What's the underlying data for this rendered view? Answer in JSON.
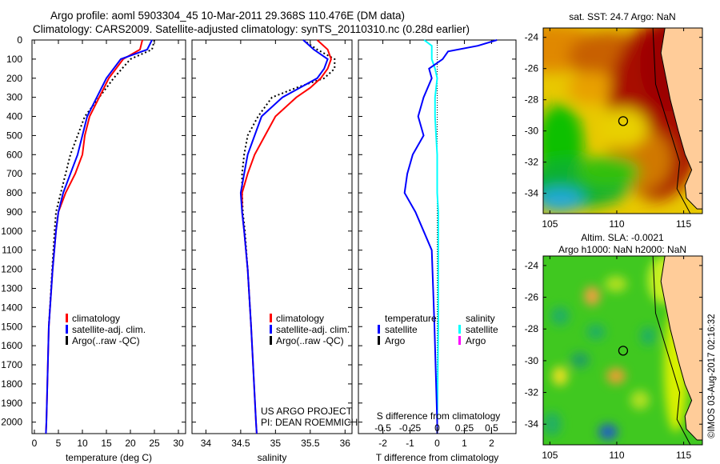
{
  "title": {
    "line1": "Argo profile: aoml 5903304_45 10-Mar-2011 29.368S 110.476E (DM data)",
    "line2": "Climatology: CARS2009. Satellite-adjusted climatology: synTS_20110310.nc (0.28d earlier)"
  },
  "colors": {
    "climatology": "#ff0000",
    "satellite": "#0000ff",
    "argo": "#000000",
    "salinity_satellite": "#00ffff",
    "salinity_argo": "#ff00ff",
    "land": "#ffcc99"
  },
  "credit": "©IMOS 03-Aug-2017 02:16:32",
  "project": {
    "line1": "US ARGO PROJECT",
    "line2": "PI: DEAN ROEMMICH"
  },
  "chart_data": [
    {
      "type": "line",
      "name": "temperature-profile",
      "xlabel": "temperature (deg C)",
      "ylabel": "depth",
      "xlim": [
        -0.5,
        31.5
      ],
      "ylim": [
        2060,
        0
      ],
      "xticks": [
        0,
        5,
        10,
        15,
        20,
        25,
        30
      ],
      "yticks": [
        0,
        100,
        200,
        300,
        400,
        500,
        600,
        700,
        800,
        900,
        1000,
        1100,
        1200,
        1300,
        1400,
        1500,
        1600,
        1700,
        1800,
        1900,
        2000
      ],
      "legend": [
        "climatology",
        "satellite-adj. clim.",
        "Argo(..raw -QC)"
      ],
      "legend_placement": "lower-right",
      "depth": [
        0,
        50,
        100,
        200,
        300,
        400,
        500,
        600,
        700,
        800,
        900,
        1000,
        1200,
        1500,
        2000,
        2060
      ],
      "series": [
        {
          "name": "climatology",
          "values": [
            22.5,
            22,
            18.5,
            15.5,
            13.5,
            11.5,
            10.5,
            10,
            8.5,
            6.5,
            5,
            4.5,
            3.8,
            3,
            2.5,
            2.4
          ]
        },
        {
          "name": "satellite-adj. clim.",
          "values": [
            24.5,
            23.5,
            18,
            15,
            13,
            11,
            10,
            9,
            7.5,
            6,
            5,
            4.5,
            3.8,
            3,
            2.5,
            2.4
          ]
        },
        {
          "name": "Argo(..raw -QC)",
          "values": [
            25,
            24.5,
            20,
            16.5,
            13.5,
            10.5,
            9,
            7.5,
            6.5,
            5.5,
            4.5,
            4.2,
            3.7,
            3,
            null,
            null
          ]
        }
      ]
    },
    {
      "type": "line",
      "name": "salinity-profile",
      "xlabel": "salinity",
      "xlim": [
        33.8,
        36.1
      ],
      "ylim": [
        2060,
        0
      ],
      "xticks": [
        34,
        34.5,
        35,
        35.5,
        36
      ],
      "legend": [
        "climatology",
        "satellite-adj. clim.",
        "Argo(..raw -QC)"
      ],
      "legend_placement": "lower-right",
      "depth": [
        0,
        50,
        100,
        150,
        200,
        250,
        300,
        400,
        500,
        600,
        700,
        800,
        900,
        1000,
        1200,
        1500,
        2000,
        2060
      ],
      "series": [
        {
          "name": "climatology",
          "values": [
            35.6,
            35.75,
            35.8,
            35.75,
            35.65,
            35.5,
            35.3,
            35.0,
            34.85,
            34.7,
            34.6,
            34.52,
            34.52,
            34.55,
            34.6,
            34.65,
            34.72,
            34.73
          ]
        },
        {
          "name": "satellite-adj. clim.",
          "values": [
            35.4,
            35.55,
            35.75,
            35.7,
            35.6,
            35.35,
            35.1,
            34.8,
            34.7,
            34.6,
            34.55,
            34.5,
            34.52,
            34.55,
            34.6,
            34.65,
            34.72,
            34.73
          ]
        },
        {
          "name": "Argo(..raw -QC)",
          "values": [
            35.4,
            35.6,
            35.85,
            35.85,
            35.7,
            35.3,
            34.95,
            34.75,
            34.6,
            34.55,
            34.52,
            34.52,
            34.53,
            34.56,
            34.6,
            34.65,
            null,
            null
          ]
        }
      ]
    },
    {
      "type": "line",
      "name": "difference-profile",
      "xlabel": "T difference from climatology",
      "x2label": "S difference from climatology",
      "xlim": [
        -2.9,
        2.9
      ],
      "x2lim": [
        -0.725,
        0.725
      ],
      "ylim": [
        2060,
        0
      ],
      "xticks": [
        -2,
        -1,
        0,
        1,
        2
      ],
      "x2ticks": [
        "-0.5",
        "-0.25",
        "0",
        "0.25",
        "0.5"
      ],
      "legend_headers": [
        "temperature",
        "salinity"
      ],
      "legend": {
        "temperature": [
          "satellite",
          "Argo"
        ],
        "salinity": [
          "satellite",
          "Argo"
        ]
      },
      "depth": [
        0,
        30,
        60,
        100,
        150,
        200,
        300,
        400,
        500,
        600,
        700,
        800,
        900,
        1000,
        1100,
        1300,
        1500,
        2000,
        2060
      ],
      "series": [
        {
          "name": "temperature satellite",
          "values": [
            2.2,
            1.5,
            0.4,
            0.2,
            -0.3,
            -0.2,
            -0.5,
            -0.7,
            -0.5,
            -0.9,
            -1.1,
            -1.2,
            -0.8,
            -0.5,
            -0.2,
            -0.15,
            -0.1,
            0,
            0
          ]
        },
        {
          "name": "salinity satellite",
          "values": [
            -0.12,
            -0.05,
            -0.05,
            -0.05,
            -0.02,
            0,
            -0.02,
            -0.02,
            -0.01,
            0,
            0,
            0,
            0.01,
            0.01,
            0.01,
            0.01,
            0.01,
            0,
            0
          ]
        }
      ]
    },
    {
      "type": "heatmap",
      "name": "sst-map",
      "title": "sat. SST: 24.7 Argo: NaN",
      "xticks": [
        105,
        110,
        115
      ],
      "yticks": [
        -24,
        -26,
        -28,
        -30,
        -32,
        -34
      ],
      "xlim": [
        104.5,
        116.4
      ],
      "ylim": [
        -35.3,
        -23.4
      ],
      "marker": {
        "lon": 110.476,
        "lat": -29.368
      }
    },
    {
      "type": "heatmap",
      "name": "sla-map",
      "title": "Altim. SLA: -0.0021",
      "subtitle": "Argo h1000: NaN h2000: NaN",
      "xticks": [
        105,
        110,
        115
      ],
      "yticks": [
        -24,
        -26,
        -28,
        -30,
        -32,
        -34
      ],
      "xlim": [
        104.5,
        116.4
      ],
      "ylim": [
        -35.3,
        -23.4
      ],
      "marker": {
        "lon": 110.476,
        "lat": -29.368
      }
    }
  ]
}
